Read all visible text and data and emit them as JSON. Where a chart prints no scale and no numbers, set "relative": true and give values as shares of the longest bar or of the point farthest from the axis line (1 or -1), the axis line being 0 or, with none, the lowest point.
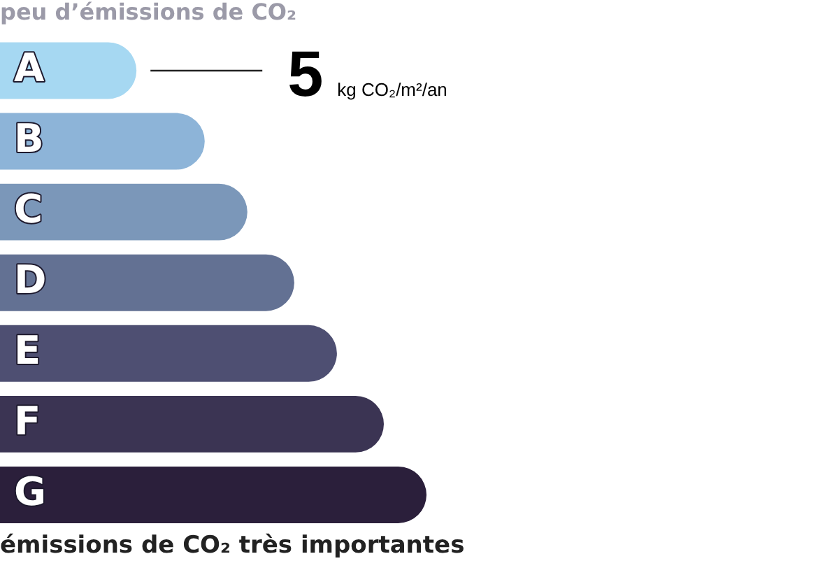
{
  "chart_data": {
    "type": "bar",
    "orientation": "horizontal",
    "relative": true,
    "title": "peu d’émissions de CO₂",
    "categories": [
      "A",
      "B",
      "C",
      "D",
      "E",
      "F",
      "G"
    ],
    "values": [
      0.32,
      0.48,
      0.58,
      0.69,
      0.79,
      0.9,
      1
    ],
    "colors": [
      "#a6d8f2",
      "#8db4d8",
      "#7b97b9",
      "#637193",
      "#4e4f72",
      "#3b3453",
      "#2b1f3b"
    ],
    "annotations": [
      "5 kg CO₂/m²/an",
      "émissions de CO₂ très importantes"
    ],
    "legend": false
  }
}
